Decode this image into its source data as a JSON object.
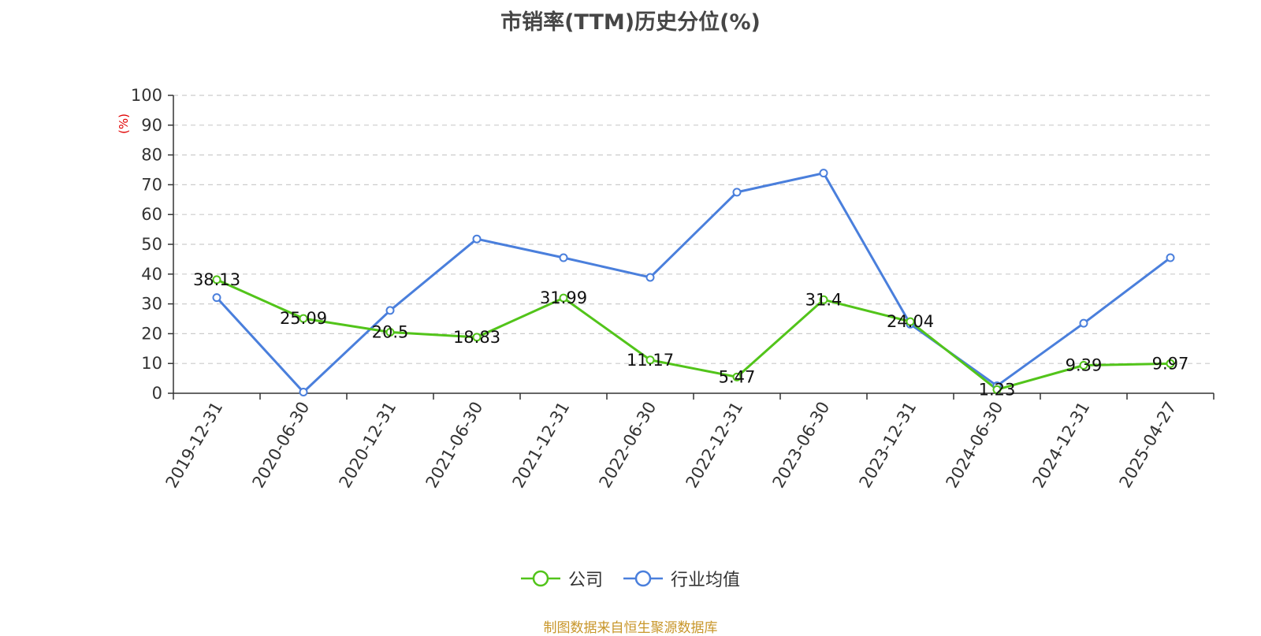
{
  "chart_data": {
    "type": "line",
    "title": "市销率(TTM)历史分位(%)",
    "ylabel": "(%)",
    "ylim": [
      0,
      100
    ],
    "yticks": [
      0,
      10,
      20,
      30,
      40,
      50,
      60,
      70,
      80,
      90,
      100
    ],
    "grid": true,
    "legend_position": "bottom-center",
    "categories": [
      "2019-12-31",
      "2020-06-30",
      "2020-12-31",
      "2021-06-30",
      "2021-12-31",
      "2022-06-30",
      "2022-12-31",
      "2023-06-30",
      "2023-12-31",
      "2024-06-30",
      "2024-12-31",
      "2025-04-27"
    ],
    "series": [
      {
        "name": "公司",
        "color": "#52c41a",
        "show_labels": true,
        "values": [
          38.13,
          25.09,
          20.5,
          18.83,
          31.99,
          11.17,
          5.47,
          31.4,
          24.04,
          1.23,
          9.39,
          9.97
        ]
      },
      {
        "name": "行业均值",
        "color": "#4a7fdc",
        "show_labels": false,
        "values": [
          32.1,
          0.4,
          27.8,
          51.8,
          45.5,
          38.9,
          67.5,
          73.9,
          23.2,
          2.5,
          23.5,
          45.5
        ]
      }
    ]
  },
  "colors": {
    "ylabel": "#e00000",
    "axis": "#333333",
    "grid": "#cccccc"
  },
  "source_note": "制图数据来自恒生聚源数据库"
}
